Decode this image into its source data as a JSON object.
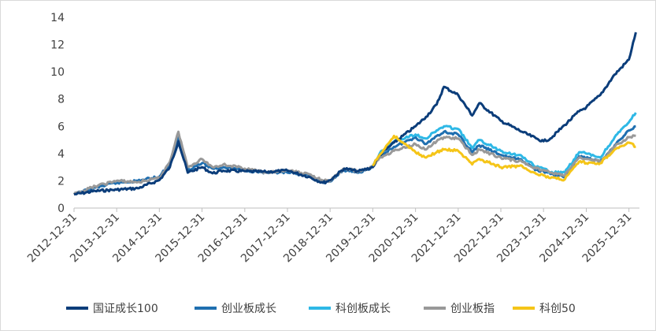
{
  "chart_data": {
    "type": "line",
    "title": "",
    "xlabel": "",
    "ylabel": "",
    "ylim": [
      0,
      14
    ],
    "yticks": [
      0,
      2,
      4,
      6,
      8,
      10,
      12,
      14
    ],
    "xlim": [
      "2012-12-31",
      "2026-03-31"
    ],
    "xticks": [
      "2012-12-31",
      "2013-12-31",
      "2014-12-31",
      "2015-12-31",
      "2016-12-31",
      "2017-12-31",
      "2018-12-31",
      "2019-12-31",
      "2020-12-31",
      "2021-12-31",
      "2022-12-31",
      "2023-12-31",
      "2024-12-31",
      "2025-12-31"
    ],
    "grid": false,
    "legend_position": "bottom",
    "series": [
      {
        "name": "国证成长100",
        "color": "#0b3d7a",
        "points": [
          [
            "2012-12-31",
            1.0
          ],
          [
            "2013-06-30",
            1.25
          ],
          [
            "2013-12-31",
            1.35
          ],
          [
            "2014-06-30",
            1.45
          ],
          [
            "2014-12-31",
            2.05
          ],
          [
            "2015-03-31",
            3.0
          ],
          [
            "2015-06-12",
            4.9
          ],
          [
            "2015-08-31",
            2.6
          ],
          [
            "2015-12-31",
            3.0
          ],
          [
            "2016-03-31",
            2.55
          ],
          [
            "2016-06-30",
            2.75
          ],
          [
            "2016-12-31",
            2.7
          ],
          [
            "2017-06-30",
            2.65
          ],
          [
            "2017-12-31",
            2.75
          ],
          [
            "2018-06-30",
            2.3
          ],
          [
            "2018-10-31",
            1.85
          ],
          [
            "2018-12-31",
            2.05
          ],
          [
            "2019-04-30",
            2.9
          ],
          [
            "2019-08-31",
            2.7
          ],
          [
            "2019-12-31",
            3.0
          ],
          [
            "2020-02-28",
            3.9
          ],
          [
            "2020-06-30",
            4.8
          ],
          [
            "2020-12-31",
            6.0
          ],
          [
            "2021-03-31",
            6.7
          ],
          [
            "2021-06-30",
            7.6
          ],
          [
            "2021-08-31",
            8.9
          ],
          [
            "2021-12-31",
            8.3
          ],
          [
            "2022-04-30",
            6.8
          ],
          [
            "2022-06-30",
            7.7
          ],
          [
            "2022-12-31",
            6.4
          ],
          [
            "2023-06-30",
            5.6
          ],
          [
            "2023-10-31",
            5.1
          ],
          [
            "2023-12-31",
            4.9
          ],
          [
            "2024-02-28",
            5.1
          ],
          [
            "2024-06-30",
            6.1
          ],
          [
            "2024-10-31",
            7.1
          ],
          [
            "2024-12-31",
            7.4
          ],
          [
            "2025-04-30",
            8.3
          ],
          [
            "2025-08-31",
            9.8
          ],
          [
            "2025-12-31",
            10.9
          ],
          [
            "2026-02-28",
            12.9
          ]
        ]
      },
      {
        "name": "创业板成长",
        "color": "#1f6fb0",
        "points": [
          [
            "2012-12-31",
            1.0
          ],
          [
            "2013-06-30",
            1.5
          ],
          [
            "2013-12-31",
            1.85
          ],
          [
            "2014-06-30",
            2.0
          ],
          [
            "2014-12-31",
            2.3
          ],
          [
            "2015-03-31",
            3.3
          ],
          [
            "2015-06-12",
            5.2
          ],
          [
            "2015-08-31",
            2.8
          ],
          [
            "2015-12-31",
            3.3
          ],
          [
            "2016-03-31",
            2.9
          ],
          [
            "2016-06-30",
            3.0
          ],
          [
            "2016-12-31",
            2.8
          ],
          [
            "2017-06-30",
            2.6
          ],
          [
            "2017-12-31",
            2.6
          ],
          [
            "2018-06-30",
            2.4
          ],
          [
            "2018-10-31",
            1.9
          ],
          [
            "2018-12-31",
            1.95
          ],
          [
            "2019-04-30",
            2.8
          ],
          [
            "2019-08-31",
            2.6
          ],
          [
            "2019-12-31",
            3.0
          ],
          [
            "2020-02-28",
            3.8
          ],
          [
            "2020-06-30",
            4.5
          ],
          [
            "2020-12-31",
            5.2
          ],
          [
            "2021-03-31",
            4.7
          ],
          [
            "2021-06-30",
            5.3
          ],
          [
            "2021-08-31",
            5.6
          ],
          [
            "2021-12-31",
            5.4
          ],
          [
            "2022-04-30",
            4.1
          ],
          [
            "2022-06-30",
            4.6
          ],
          [
            "2022-12-31",
            3.9
          ],
          [
            "2023-06-30",
            3.5
          ],
          [
            "2023-10-31",
            2.8
          ],
          [
            "2023-12-31",
            2.7
          ],
          [
            "2024-02-28",
            2.5
          ],
          [
            "2024-06-30",
            2.3
          ],
          [
            "2024-10-31",
            3.8
          ],
          [
            "2024-12-31",
            3.7
          ],
          [
            "2025-04-30",
            3.4
          ],
          [
            "2025-08-31",
            4.6
          ],
          [
            "2025-12-31",
            5.7
          ],
          [
            "2026-02-28",
            6.0
          ]
        ]
      },
      {
        "name": "科创板成长",
        "color": "#2eb8e6",
        "points": [
          [
            "2019-12-31",
            3.1
          ],
          [
            "2020-02-28",
            4.0
          ],
          [
            "2020-06-30",
            4.9
          ],
          [
            "2020-12-31",
            5.4
          ],
          [
            "2021-03-31",
            5.1
          ],
          [
            "2021-06-30",
            5.7
          ],
          [
            "2021-08-31",
            6.0
          ],
          [
            "2021-12-31",
            5.8
          ],
          [
            "2022-04-30",
            4.4
          ],
          [
            "2022-06-30",
            5.0
          ],
          [
            "2022-12-31",
            4.2
          ],
          [
            "2023-06-30",
            3.8
          ],
          [
            "2023-10-31",
            3.0
          ],
          [
            "2023-12-31",
            2.9
          ],
          [
            "2024-02-28",
            2.6
          ],
          [
            "2024-06-30",
            2.6
          ],
          [
            "2024-10-31",
            4.1
          ],
          [
            "2024-12-31",
            4.0
          ],
          [
            "2025-04-30",
            3.7
          ],
          [
            "2025-08-31",
            5.2
          ],
          [
            "2025-12-31",
            6.3
          ],
          [
            "2026-02-28",
            7.0
          ]
        ]
      },
      {
        "name": "创业板指",
        "color": "#999999",
        "points": [
          [
            "2012-12-31",
            1.0
          ],
          [
            "2013-06-30",
            1.6
          ],
          [
            "2013-12-31",
            2.0
          ],
          [
            "2014-06-30",
            1.9
          ],
          [
            "2014-12-31",
            2.2
          ],
          [
            "2015-03-31",
            3.4
          ],
          [
            "2015-06-12",
            5.6
          ],
          [
            "2015-08-31",
            3.0
          ],
          [
            "2015-12-31",
            3.6
          ],
          [
            "2016-03-31",
            3.0
          ],
          [
            "2016-06-30",
            3.2
          ],
          [
            "2016-12-31",
            2.9
          ],
          [
            "2017-06-30",
            2.6
          ],
          [
            "2017-12-31",
            2.75
          ],
          [
            "2018-06-30",
            2.5
          ],
          [
            "2018-10-31",
            2.0
          ],
          [
            "2018-12-31",
            2.0
          ],
          [
            "2019-04-30",
            2.9
          ],
          [
            "2019-08-31",
            2.7
          ],
          [
            "2019-12-31",
            3.0
          ],
          [
            "2020-02-28",
            3.7
          ],
          [
            "2020-06-30",
            4.2
          ],
          [
            "2020-12-31",
            4.7
          ],
          [
            "2021-03-31",
            4.3
          ],
          [
            "2021-06-30",
            4.9
          ],
          [
            "2021-08-31",
            5.2
          ],
          [
            "2021-12-31",
            5.1
          ],
          [
            "2022-04-30",
            3.9
          ],
          [
            "2022-06-30",
            4.3
          ],
          [
            "2022-12-31",
            3.7
          ],
          [
            "2023-06-30",
            3.4
          ],
          [
            "2023-10-31",
            2.9
          ],
          [
            "2023-12-31",
            2.8
          ],
          [
            "2024-02-28",
            2.6
          ],
          [
            "2024-06-30",
            2.4
          ],
          [
            "2024-10-31",
            3.7
          ],
          [
            "2024-12-31",
            3.6
          ],
          [
            "2025-04-30",
            3.4
          ],
          [
            "2025-08-31",
            4.5
          ],
          [
            "2025-12-31",
            5.2
          ],
          [
            "2026-02-28",
            5.3
          ]
        ]
      },
      {
        "name": "科创50",
        "color": "#f5c518",
        "points": [
          [
            "2019-12-31",
            3.1
          ],
          [
            "2020-02-28",
            3.9
          ],
          [
            "2020-06-30",
            5.3
          ],
          [
            "2020-12-31",
            4.1
          ],
          [
            "2021-03-31",
            3.7
          ],
          [
            "2021-06-30",
            4.1
          ],
          [
            "2021-08-31",
            4.3
          ],
          [
            "2021-12-31",
            4.2
          ],
          [
            "2022-04-30",
            3.2
          ],
          [
            "2022-06-30",
            3.6
          ],
          [
            "2022-12-31",
            3.0
          ],
          [
            "2023-06-30",
            3.1
          ],
          [
            "2023-10-31",
            2.5
          ],
          [
            "2023-12-31",
            2.4
          ],
          [
            "2024-02-28",
            2.2
          ],
          [
            "2024-06-30",
            2.1
          ],
          [
            "2024-10-31",
            3.4
          ],
          [
            "2024-12-31",
            3.3
          ],
          [
            "2025-04-30",
            3.3
          ],
          [
            "2025-08-31",
            4.3
          ],
          [
            "2025-12-31",
            4.8
          ],
          [
            "2026-02-28",
            4.5
          ]
        ]
      }
    ]
  }
}
